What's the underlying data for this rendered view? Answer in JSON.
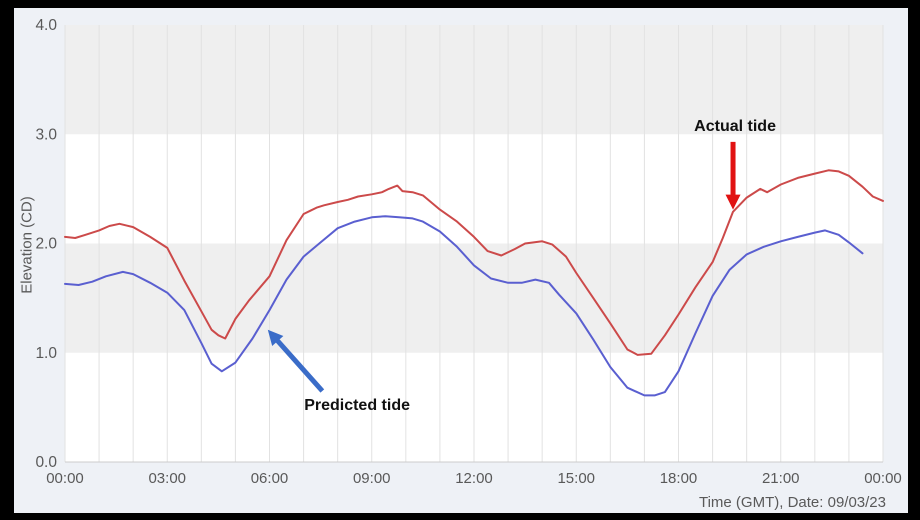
{
  "chart_data": {
    "type": "line",
    "title": "",
    "xlabel": "Time (GMT), Date: 09/03/23",
    "ylabel": "Elevation (CD)",
    "xlim": [
      0,
      24
    ],
    "ylim": [
      0,
      4
    ],
    "grid": "vertical-hourly",
    "legend_position": "none",
    "x_ticks": [
      {
        "t": 0,
        "label": "00:00"
      },
      {
        "t": 3,
        "label": "03:00"
      },
      {
        "t": 6,
        "label": "06:00"
      },
      {
        "t": 9,
        "label": "09:00"
      },
      {
        "t": 12,
        "label": "12:00"
      },
      {
        "t": 15,
        "label": "15:00"
      },
      {
        "t": 18,
        "label": "18:00"
      },
      {
        "t": 21,
        "label": "21:00"
      },
      {
        "t": 24,
        "label": "00:00"
      }
    ],
    "y_ticks": [
      {
        "v": 0,
        "label": "0.0"
      },
      {
        "v": 1,
        "label": "1.0"
      },
      {
        "v": 2,
        "label": "2.0"
      },
      {
        "v": 3,
        "label": "3.0"
      },
      {
        "v": 4,
        "label": "4.0"
      }
    ],
    "shaded_bands": [
      [
        1,
        2
      ],
      [
        3,
        4
      ]
    ],
    "colors": {
      "frame": "#000000",
      "page_bg": "#eef1f6",
      "plot_bg": "#ffffff",
      "band": "#efefef",
      "grid": "#e2e2e2",
      "axis_line": "#cccccc",
      "tick_text": "#595959",
      "actual_line": "#cc4a4a",
      "predicted_line": "#5a5fd0",
      "actual_arrow": "#e11212",
      "predicted_arrow": "#3a6cc8"
    },
    "series": [
      {
        "name": "Actual tide",
        "color": "#cc4a4a",
        "points": [
          [
            0,
            2.06
          ],
          [
            0.3,
            2.05
          ],
          [
            0.6,
            2.08
          ],
          [
            1.0,
            2.12
          ],
          [
            1.3,
            2.16
          ],
          [
            1.6,
            2.18
          ],
          [
            2.0,
            2.15
          ],
          [
            2.5,
            2.06
          ],
          [
            3.0,
            1.96
          ],
          [
            3.5,
            1.66
          ],
          [
            4.0,
            1.38
          ],
          [
            4.3,
            1.21
          ],
          [
            4.5,
            1.16
          ],
          [
            4.7,
            1.13
          ],
          [
            5.0,
            1.31
          ],
          [
            5.4,
            1.48
          ],
          [
            6.0,
            1.7
          ],
          [
            6.5,
            2.03
          ],
          [
            7.0,
            2.27
          ],
          [
            7.2,
            2.3
          ],
          [
            7.4,
            2.33
          ],
          [
            7.6,
            2.35
          ],
          [
            8.0,
            2.38
          ],
          [
            8.3,
            2.4
          ],
          [
            8.6,
            2.43
          ],
          [
            9.0,
            2.45
          ],
          [
            9.3,
            2.47
          ],
          [
            9.5,
            2.5
          ],
          [
            9.75,
            2.53
          ],
          [
            9.9,
            2.48
          ],
          [
            10.2,
            2.47
          ],
          [
            10.5,
            2.44
          ],
          [
            11.0,
            2.31
          ],
          [
            11.5,
            2.2
          ],
          [
            12.0,
            2.06
          ],
          [
            12.4,
            1.93
          ],
          [
            12.8,
            1.89
          ],
          [
            13.2,
            1.95
          ],
          [
            13.5,
            2.0
          ],
          [
            14.0,
            2.02
          ],
          [
            14.3,
            1.99
          ],
          [
            14.7,
            1.88
          ],
          [
            15.0,
            1.73
          ],
          [
            15.5,
            1.5
          ],
          [
            16.0,
            1.27
          ],
          [
            16.5,
            1.03
          ],
          [
            16.8,
            0.98
          ],
          [
            17.2,
            0.99
          ],
          [
            17.6,
            1.16
          ],
          [
            18.0,
            1.35
          ],
          [
            18.5,
            1.6
          ],
          [
            19.0,
            1.83
          ],
          [
            19.3,
            2.05
          ],
          [
            19.6,
            2.29
          ],
          [
            20.0,
            2.42
          ],
          [
            20.4,
            2.5
          ],
          [
            20.6,
            2.47
          ],
          [
            21.0,
            2.54
          ],
          [
            21.5,
            2.6
          ],
          [
            22.0,
            2.64
          ],
          [
            22.4,
            2.67
          ],
          [
            22.7,
            2.66
          ],
          [
            23.0,
            2.62
          ],
          [
            23.4,
            2.52
          ],
          [
            23.7,
            2.43
          ],
          [
            24.0,
            2.39
          ]
        ]
      },
      {
        "name": "Predicted tide",
        "color": "#5a5fd0",
        "points": [
          [
            0,
            1.63
          ],
          [
            0.4,
            1.62
          ],
          [
            0.8,
            1.65
          ],
          [
            1.2,
            1.7
          ],
          [
            1.7,
            1.74
          ],
          [
            2.0,
            1.72
          ],
          [
            2.5,
            1.64
          ],
          [
            3.0,
            1.55
          ],
          [
            3.5,
            1.39
          ],
          [
            4.0,
            1.09
          ],
          [
            4.3,
            0.9
          ],
          [
            4.6,
            0.83
          ],
          [
            5.0,
            0.91
          ],
          [
            5.5,
            1.13
          ],
          [
            6.0,
            1.39
          ],
          [
            6.5,
            1.67
          ],
          [
            7.0,
            1.88
          ],
          [
            7.5,
            2.01
          ],
          [
            8.0,
            2.14
          ],
          [
            8.5,
            2.2
          ],
          [
            9.0,
            2.24
          ],
          [
            9.4,
            2.25
          ],
          [
            9.8,
            2.24
          ],
          [
            10.2,
            2.23
          ],
          [
            10.5,
            2.2
          ],
          [
            11.0,
            2.11
          ],
          [
            11.5,
            1.97
          ],
          [
            12.0,
            1.8
          ],
          [
            12.5,
            1.68
          ],
          [
            13.0,
            1.64
          ],
          [
            13.4,
            1.64
          ],
          [
            13.8,
            1.67
          ],
          [
            14.2,
            1.64
          ],
          [
            14.5,
            1.53
          ],
          [
            15.0,
            1.36
          ],
          [
            15.5,
            1.12
          ],
          [
            16.0,
            0.87
          ],
          [
            16.5,
            0.68
          ],
          [
            17.0,
            0.61
          ],
          [
            17.3,
            0.61
          ],
          [
            17.6,
            0.64
          ],
          [
            18.0,
            0.83
          ],
          [
            18.5,
            1.18
          ],
          [
            19.0,
            1.52
          ],
          [
            19.5,
            1.76
          ],
          [
            20.0,
            1.9
          ],
          [
            20.5,
            1.97
          ],
          [
            21.0,
            2.02
          ],
          [
            21.5,
            2.06
          ],
          [
            22.0,
            2.1
          ],
          [
            22.3,
            2.12
          ],
          [
            22.7,
            2.08
          ],
          [
            23.0,
            2.01
          ],
          [
            23.4,
            1.91
          ]
        ]
      }
    ],
    "annotations": [
      {
        "text": "Actual tide",
        "color": "#e11212",
        "label_at": {
          "t": 19.66,
          "v": 3.07
        },
        "arrow_from": {
          "t": 19.6,
          "v": 2.93
        },
        "arrow_to": {
          "t": 19.6,
          "v": 2.31
        }
      },
      {
        "text": "Predicted tide",
        "color": "#3a6cc8",
        "label_at": {
          "t": 8.57,
          "v": 0.51
        },
        "arrow_from": {
          "t": 7.55,
          "v": 0.65
        },
        "arrow_to": {
          "t": 5.95,
          "v": 1.21
        }
      }
    ]
  }
}
